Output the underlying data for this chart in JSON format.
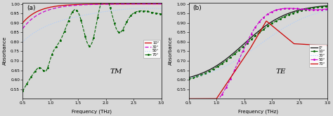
{
  "xlim": [
    0.5,
    3.0
  ],
  "ylim": [
    0.5,
    1.005
  ],
  "yticks": [
    0.55,
    0.6,
    0.65,
    0.7,
    0.75,
    0.8,
    0.85,
    0.9,
    0.95,
    1.0
  ],
  "xticks": [
    0.5,
    1.0,
    1.5,
    2.0,
    2.5,
    3.0
  ],
  "xlabel": "Frequency (THz)",
  "ylabel": "Absorbance",
  "panel_a_label": "(a)",
  "panel_b_label": "(b)",
  "tm_label": "TM",
  "te_label": "TE",
  "tm_legend": [
    "10°",
    "30°",
    "50°",
    "70°"
  ],
  "te_legend": [
    "0°",
    "10°",
    "30°",
    "50°",
    "70°"
  ],
  "tm_colors": [
    "#cc0000",
    "#cc00cc",
    "#aaccff",
    "#006600"
  ],
  "te_colors": [
    "#111111",
    "#006600",
    "#aaccff",
    "#cc00cc",
    "#cc0000"
  ],
  "background_color": "#d8d8d8",
  "figsize": [
    4.74,
    1.66
  ],
  "dpi": 100
}
